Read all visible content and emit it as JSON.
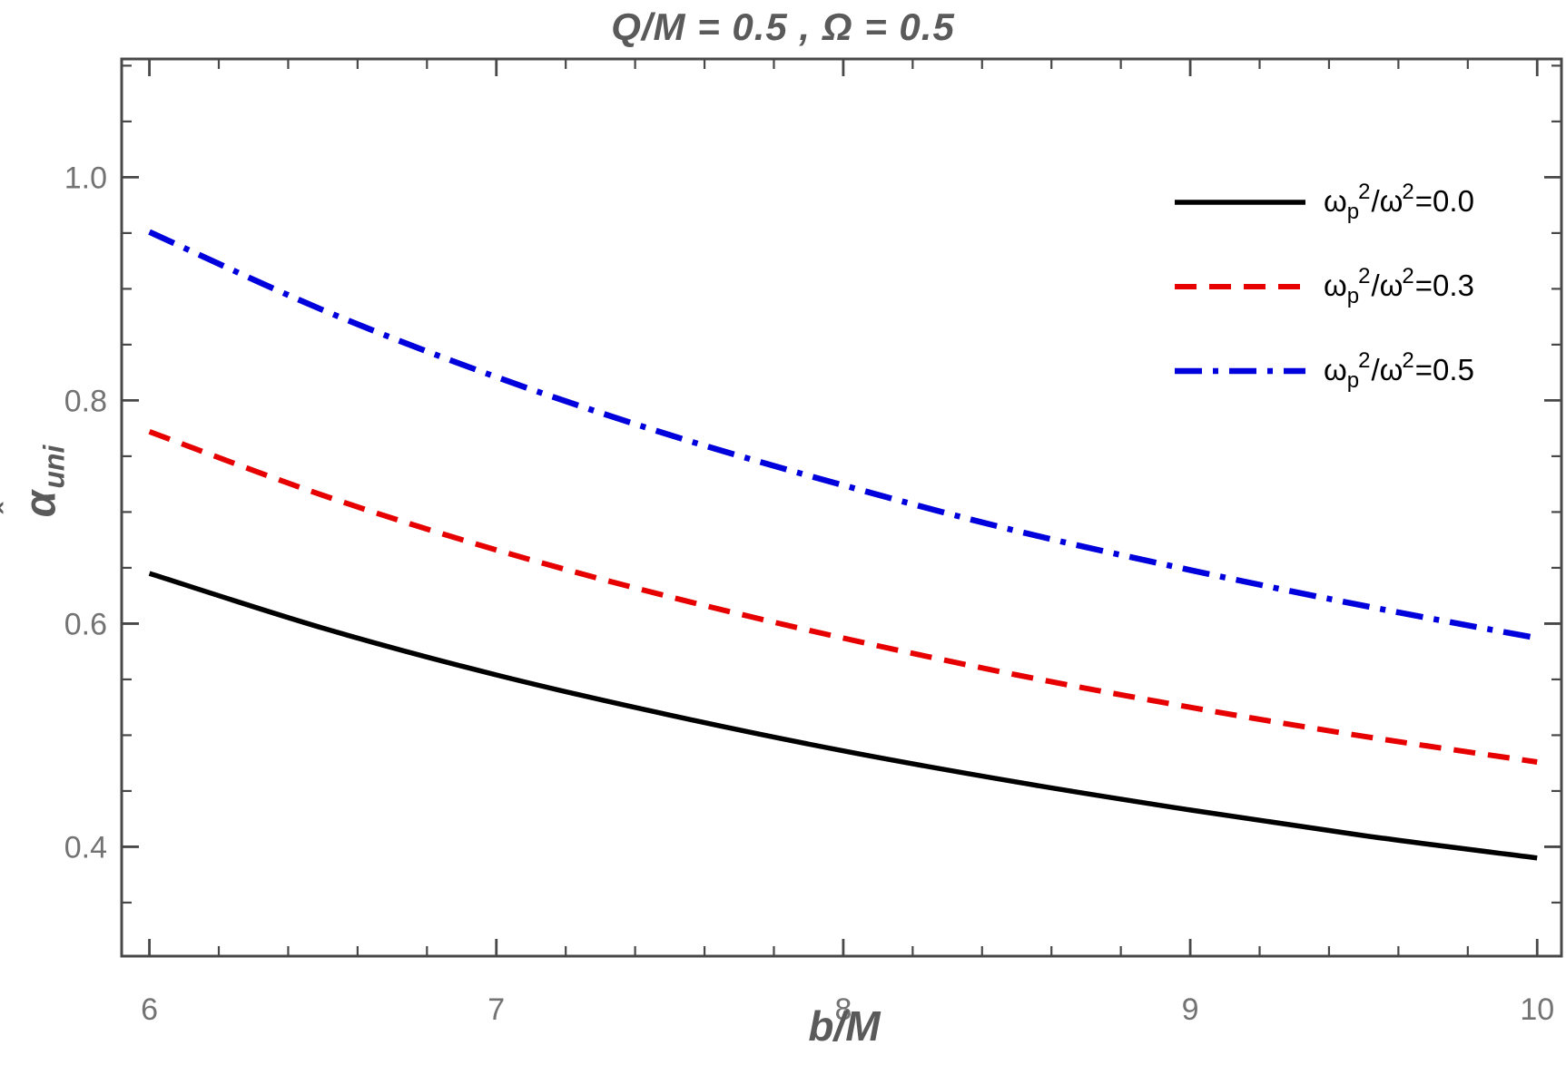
{
  "title": "Q/M = 0.5 , Ω = 0.5",
  "colors": {
    "title_gray": "#5a5a5a",
    "tick_label_gray": "#737373",
    "frame_gray": "#484848",
    "series_black": "#000000",
    "series_red": "#e60000",
    "series_blue": "#0000dd"
  },
  "chart_data": {
    "type": "line",
    "title": "Q/M = 0.5 , Ω = 0.5",
    "xlabel": "b/M",
    "ylabel": {
      "hat": "ˆ",
      "base": "α",
      "sub": "uni"
    },
    "xlim": [
      5.92,
      10.07
    ],
    "ylim": [
      0.302,
      1.106
    ],
    "grid": false,
    "frame": true,
    "x_ticks": {
      "major": [
        6,
        7,
        8,
        9,
        10
      ],
      "labels": [
        "6",
        "7",
        "8",
        "9",
        "10"
      ],
      "minor_step": 0.2
    },
    "y_ticks": {
      "major": [
        0.4,
        0.6,
        0.8,
        1.0
      ],
      "labels": [
        "0.4",
        "0.6",
        "0.8",
        "1.0"
      ],
      "minor_step": 0.05
    },
    "x": [
      6,
      6.5,
      7,
      7.5,
      8,
      8.5,
      9,
      9.5,
      10
    ],
    "series": [
      {
        "name": "omega-ratio-0.0",
        "color": "#000000",
        "style": "solid",
        "values": [
          0.645,
          0.596,
          0.554,
          0.518,
          0.486,
          0.458,
          0.433,
          0.41,
          0.39
        ]
      },
      {
        "name": "omega-ratio-0.3",
        "color": "#e60000",
        "style": "dashed",
        "values": [
          0.772,
          0.715,
          0.666,
          0.624,
          0.587,
          0.554,
          0.525,
          0.499,
          0.476
        ]
      },
      {
        "name": "omega-ratio-0.5",
        "color": "#0000dd",
        "style": "dash-dot",
        "values": [
          0.951,
          0.881,
          0.821,
          0.769,
          0.724,
          0.683,
          0.648,
          0.616,
          0.587
        ]
      }
    ],
    "legend": {
      "position": "top-right",
      "items": [
        {
          "omega1": "ω",
          "sub": "p",
          "sup1": "2",
          "slash": "/",
          "omega2": "ω",
          "sup2": "2",
          "equals": "=",
          "value": "0.0"
        },
        {
          "omega1": "ω",
          "sub": "p",
          "sup1": "2",
          "slash": "/",
          "omega2": "ω",
          "sup2": "2",
          "equals": "=",
          "value": "0.3"
        },
        {
          "omega1": "ω",
          "sub": "p",
          "sup1": "2",
          "slash": "/",
          "omega2": "ω",
          "sup2": "2",
          "equals": "=",
          "value": "0.5"
        }
      ]
    }
  }
}
